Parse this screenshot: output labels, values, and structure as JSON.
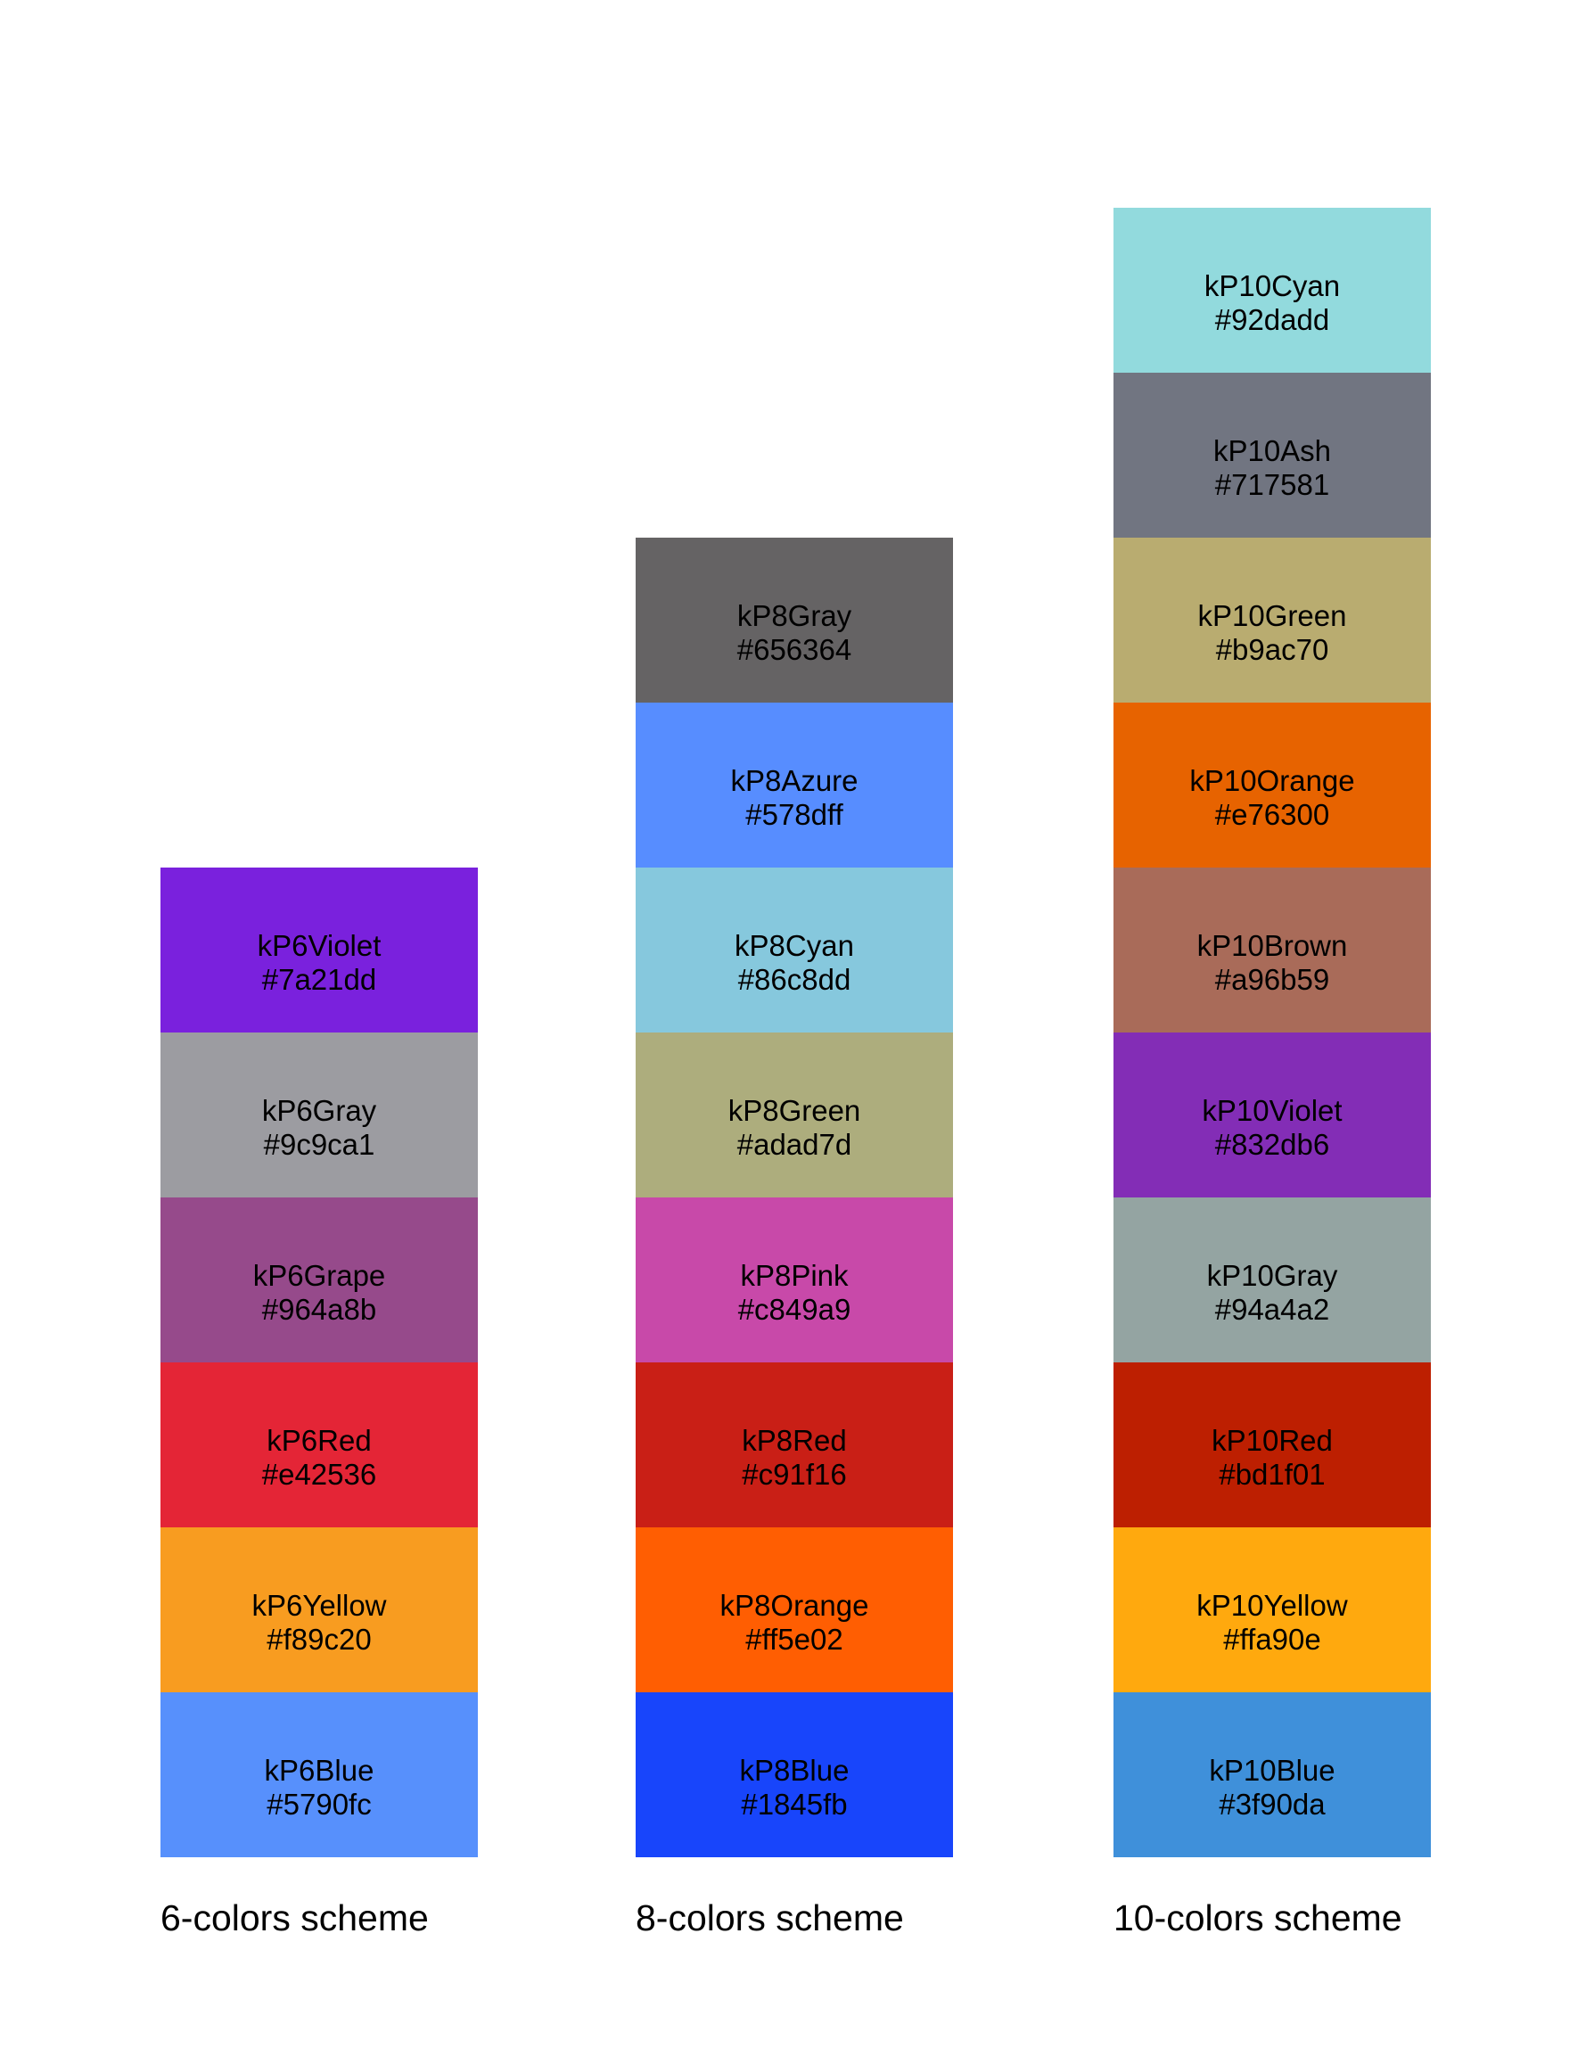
{
  "figure": {
    "background": "#ffffff",
    "text_color": "#000000"
  },
  "schemes": [
    {
      "label": "6-colors scheme",
      "colors": [
        {
          "name": "kP6Violet",
          "hex": "#7a21dd"
        },
        {
          "name": "kP6Gray",
          "hex": "#9c9ca1"
        },
        {
          "name": "kP6Grape",
          "hex": "#964a8b"
        },
        {
          "name": "kP6Red",
          "hex": "#e42536"
        },
        {
          "name": "kP6Yellow",
          "hex": "#f89c20"
        },
        {
          "name": "kP6Blue",
          "hex": "#5790fc"
        }
      ]
    },
    {
      "label": "8-colors scheme",
      "colors": [
        {
          "name": "kP8Gray",
          "hex": "#656364"
        },
        {
          "name": "kP8Azure",
          "hex": "#578dff"
        },
        {
          "name": "kP8Cyan",
          "hex": "#86c8dd"
        },
        {
          "name": "kP8Green",
          "hex": "#adad7d"
        },
        {
          "name": "kP8Pink",
          "hex": "#c849a9"
        },
        {
          "name": "kP8Red",
          "hex": "#c91f16"
        },
        {
          "name": "kP8Orange",
          "hex": "#ff5e02"
        },
        {
          "name": "kP8Blue",
          "hex": "#1845fb"
        }
      ]
    },
    {
      "label": "10-colors scheme",
      "colors": [
        {
          "name": "kP10Cyan",
          "hex": "#92dadd"
        },
        {
          "name": "kP10Ash",
          "hex": "#717581"
        },
        {
          "name": "kP10Green",
          "hex": "#b9ac70"
        },
        {
          "name": "kP10Orange",
          "hex": "#e76300"
        },
        {
          "name": "kP10Brown",
          "hex": "#a96b59"
        },
        {
          "name": "kP10Violet",
          "hex": "#832db6"
        },
        {
          "name": "kP10Gray",
          "hex": "#94a4a2"
        },
        {
          "name": "kP10Red",
          "hex": "#bd1f01"
        },
        {
          "name": "kP10Yellow",
          "hex": "#ffa90e"
        },
        {
          "name": "kP10Blue",
          "hex": "#3f90da"
        }
      ]
    }
  ],
  "chart_data": [
    {
      "type": "table",
      "title": "6-colors scheme",
      "categories": [
        "kP6Violet",
        "kP6Gray",
        "kP6Grape",
        "kP6Red",
        "kP6Yellow",
        "kP6Blue"
      ],
      "values": [
        "#7a21dd",
        "#9c9ca1",
        "#964a8b",
        "#e42536",
        "#f89c20",
        "#5790fc"
      ],
      "layout": "vertical swatch stack, bottom-aligned"
    },
    {
      "type": "table",
      "title": "8-colors scheme",
      "categories": [
        "kP8Gray",
        "kP8Azure",
        "kP8Cyan",
        "kP8Green",
        "kP8Pink",
        "kP8Red",
        "kP8Orange",
        "kP8Blue"
      ],
      "values": [
        "#656364",
        "#578dff",
        "#86c8dd",
        "#adad7d",
        "#c849a9",
        "#c91f16",
        "#ff5e02",
        "#1845fb"
      ],
      "layout": "vertical swatch stack, bottom-aligned"
    },
    {
      "type": "table",
      "title": "10-colors scheme",
      "categories": [
        "kP10Cyan",
        "kP10Ash",
        "kP10Green",
        "kP10Orange",
        "kP10Brown",
        "kP10Violet",
        "kP10Gray",
        "kP10Red",
        "kP10Yellow",
        "kP10Blue"
      ],
      "values": [
        "#92dadd",
        "#717581",
        "#b9ac70",
        "#e76300",
        "#a96b59",
        "#832db6",
        "#94a4a2",
        "#bd1f01",
        "#ffa90e",
        "#3f90da"
      ],
      "layout": "vertical swatch stack, bottom-aligned"
    }
  ]
}
